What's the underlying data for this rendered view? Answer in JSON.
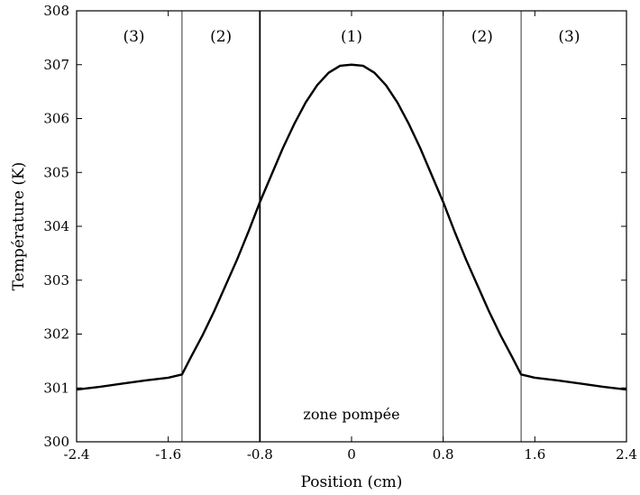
{
  "chart_data": {
    "type": "line",
    "xlabel": "Position (cm)",
    "ylabel": "Température (K)",
    "xlim": [
      -2.4,
      2.4
    ],
    "ylim": [
      300,
      308
    ],
    "xticks": [
      -2.4,
      -1.6,
      -0.8,
      0,
      0.8,
      1.6,
      2.4
    ],
    "xtick_labels": [
      "-2.4",
      "-1.6",
      "-0.8",
      "0",
      "0.8",
      "1.6",
      "2.4"
    ],
    "yticks": [
      300,
      301,
      302,
      303,
      304,
      305,
      306,
      307,
      308
    ],
    "ytick_labels": [
      "300",
      "301",
      "302",
      "303",
      "304",
      "305",
      "306",
      "307",
      "308"
    ],
    "grid": false,
    "region_boundaries": [
      -1.48,
      -0.8,
      0.8,
      1.48
    ],
    "region_boundary_emphasis": [
      false,
      true,
      false,
      false
    ],
    "region_labels": [
      {
        "x": -1.9,
        "text": "(3)"
      },
      {
        "x": -1.14,
        "text": "(2)"
      },
      {
        "x": 0,
        "text": "(1)"
      },
      {
        "x": 1.14,
        "text": "(2)"
      },
      {
        "x": 1.9,
        "text": "(3)"
      }
    ],
    "annotations": [
      {
        "x": 0,
        "y": 300.5,
        "text": "zone pompée"
      }
    ],
    "series": [
      {
        "x": [
          -2.4,
          -2.2,
          -2.0,
          -1.8,
          -1.6,
          -1.48,
          -1.4,
          -1.3,
          -1.2,
          -1.1,
          -1.0,
          -0.9,
          -0.8,
          -0.7,
          -0.6,
          -0.5,
          -0.4,
          -0.3,
          -0.2,
          -0.1,
          0,
          0.1,
          0.2,
          0.3,
          0.4,
          0.5,
          0.6,
          0.7,
          0.8,
          0.9,
          1.0,
          1.1,
          1.2,
          1.3,
          1.4,
          1.48,
          1.6,
          1.8,
          2.0,
          2.2,
          2.4
        ],
        "y": [
          300.97,
          301.02,
          301.08,
          301.14,
          301.19,
          301.25,
          301.58,
          301.98,
          302.42,
          302.9,
          303.38,
          303.9,
          304.45,
          304.95,
          305.45,
          305.9,
          306.3,
          306.62,
          306.85,
          306.98,
          307.0,
          306.98,
          306.85,
          306.62,
          306.3,
          305.9,
          305.45,
          304.95,
          304.45,
          303.9,
          303.38,
          302.9,
          302.42,
          301.98,
          301.58,
          301.25,
          301.19,
          301.14,
          301.08,
          301.02,
          300.97
        ],
        "color": "#000000"
      }
    ]
  }
}
